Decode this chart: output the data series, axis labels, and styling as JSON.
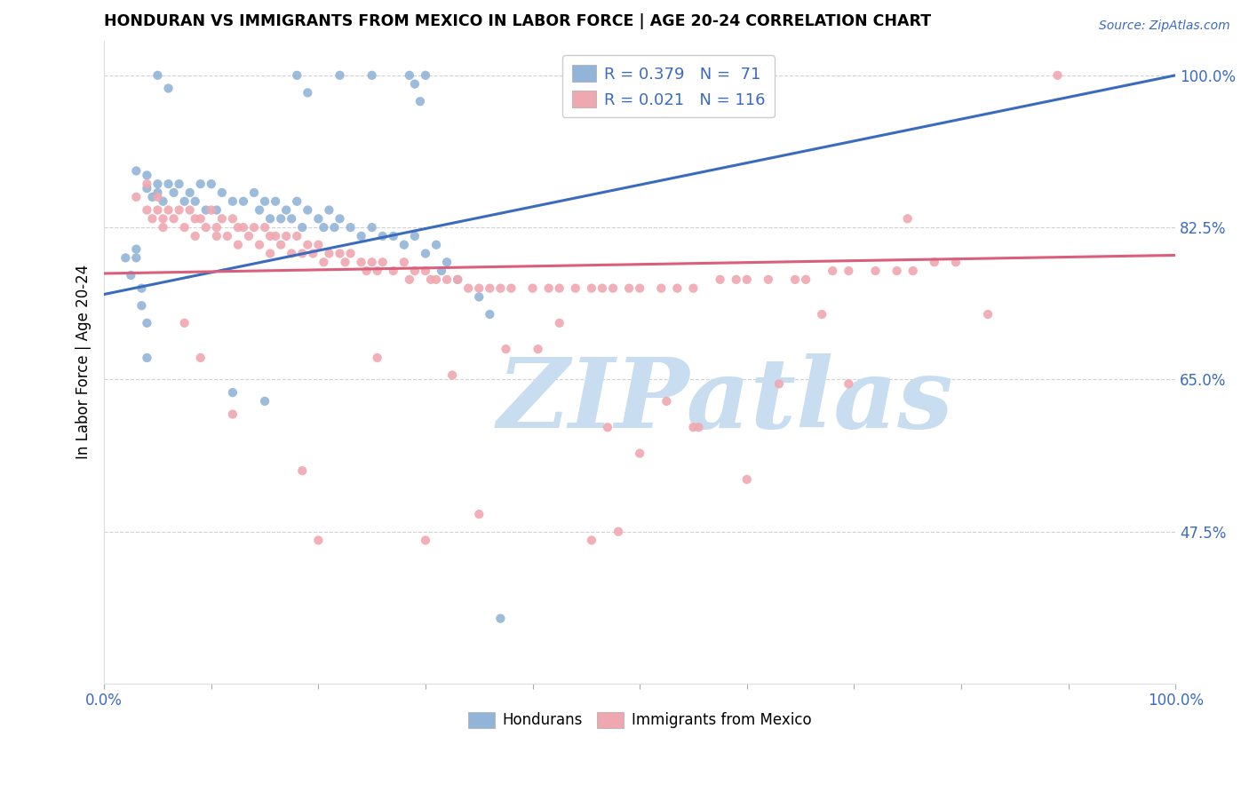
{
  "title": "HONDURAN VS IMMIGRANTS FROM MEXICO IN LABOR FORCE | AGE 20-24 CORRELATION CHART",
  "source": "Source: ZipAtlas.com",
  "ylabel": "In Labor Force | Age 20-24",
  "y_ticks_pct": [
    47.5,
    65.0,
    82.5,
    100.0
  ],
  "x_range": [
    0.0,
    1.0
  ],
  "y_range": [
    0.3,
    1.04
  ],
  "legend_blue_label": "R = 0.379   N =  71",
  "legend_pink_label": "R = 0.021   N = 116",
  "blue_color": "#92b4d8",
  "pink_color": "#f0a8b0",
  "blue_line_color": "#3a6bbf",
  "pink_line_color": "#d95f7a",
  "watermark_color": "#c8ddf0",
  "blue_scatter_x": [
    0.05,
    0.06,
    0.18,
    0.19,
    0.22,
    0.25,
    0.285,
    0.29,
    0.295,
    0.3,
    0.03,
    0.04,
    0.04,
    0.045,
    0.05,
    0.05,
    0.055,
    0.06,
    0.065,
    0.07,
    0.075,
    0.08,
    0.085,
    0.09,
    0.095,
    0.1,
    0.105,
    0.11,
    0.12,
    0.13,
    0.14,
    0.145,
    0.15,
    0.155,
    0.16,
    0.165,
    0.17,
    0.175,
    0.18,
    0.185,
    0.19,
    0.2,
    0.205,
    0.21,
    0.215,
    0.22,
    0.23,
    0.24,
    0.25,
    0.26,
    0.27,
    0.28,
    0.29,
    0.3,
    0.31,
    0.315,
    0.32,
    0.33,
    0.35,
    0.36,
    0.02,
    0.025,
    0.03,
    0.03,
    0.035,
    0.035,
    0.04,
    0.04,
    0.12,
    0.15,
    0.37
  ],
  "blue_scatter_y": [
    1.0,
    0.985,
    1.0,
    0.98,
    1.0,
    1.0,
    1.0,
    0.99,
    0.97,
    1.0,
    0.89,
    0.885,
    0.87,
    0.86,
    0.875,
    0.865,
    0.855,
    0.875,
    0.865,
    0.875,
    0.855,
    0.865,
    0.855,
    0.875,
    0.845,
    0.875,
    0.845,
    0.865,
    0.855,
    0.855,
    0.865,
    0.845,
    0.855,
    0.835,
    0.855,
    0.835,
    0.845,
    0.835,
    0.855,
    0.825,
    0.845,
    0.835,
    0.825,
    0.845,
    0.825,
    0.835,
    0.825,
    0.815,
    0.825,
    0.815,
    0.815,
    0.805,
    0.815,
    0.795,
    0.805,
    0.775,
    0.785,
    0.765,
    0.745,
    0.725,
    0.79,
    0.77,
    0.8,
    0.79,
    0.755,
    0.735,
    0.715,
    0.675,
    0.635,
    0.625,
    0.375
  ],
  "pink_scatter_x": [
    0.03,
    0.04,
    0.04,
    0.045,
    0.05,
    0.05,
    0.055,
    0.055,
    0.06,
    0.065,
    0.07,
    0.075,
    0.08,
    0.085,
    0.085,
    0.09,
    0.095,
    0.1,
    0.105,
    0.105,
    0.11,
    0.115,
    0.12,
    0.125,
    0.125,
    0.13,
    0.135,
    0.14,
    0.145,
    0.15,
    0.155,
    0.155,
    0.16,
    0.165,
    0.17,
    0.175,
    0.18,
    0.185,
    0.19,
    0.195,
    0.2,
    0.205,
    0.21,
    0.22,
    0.225,
    0.23,
    0.24,
    0.245,
    0.25,
    0.255,
    0.26,
    0.27,
    0.28,
    0.285,
    0.29,
    0.3,
    0.305,
    0.31,
    0.32,
    0.33,
    0.34,
    0.35,
    0.36,
    0.37,
    0.38,
    0.4,
    0.415,
    0.425,
    0.44,
    0.455,
    0.465,
    0.475,
    0.49,
    0.5,
    0.52,
    0.535,
    0.55,
    0.575,
    0.59,
    0.6,
    0.62,
    0.645,
    0.655,
    0.68,
    0.695,
    0.72,
    0.74,
    0.755,
    0.775,
    0.795,
    0.63,
    0.5,
    0.35,
    0.48,
    0.2,
    0.695,
    0.825,
    0.3,
    0.455,
    0.6,
    0.12,
    0.075,
    0.09,
    0.75,
    0.89,
    0.405,
    0.55,
    0.425,
    0.375,
    0.67,
    0.255,
    0.325,
    0.525,
    0.47,
    0.185,
    0.555
  ],
  "pink_scatter_y": [
    0.86,
    0.875,
    0.845,
    0.835,
    0.86,
    0.845,
    0.835,
    0.825,
    0.845,
    0.835,
    0.845,
    0.825,
    0.845,
    0.835,
    0.815,
    0.835,
    0.825,
    0.845,
    0.825,
    0.815,
    0.835,
    0.815,
    0.835,
    0.825,
    0.805,
    0.825,
    0.815,
    0.825,
    0.805,
    0.825,
    0.815,
    0.795,
    0.815,
    0.805,
    0.815,
    0.795,
    0.815,
    0.795,
    0.805,
    0.795,
    0.805,
    0.785,
    0.795,
    0.795,
    0.785,
    0.795,
    0.785,
    0.775,
    0.785,
    0.775,
    0.785,
    0.775,
    0.785,
    0.765,
    0.775,
    0.775,
    0.765,
    0.765,
    0.765,
    0.765,
    0.755,
    0.755,
    0.755,
    0.755,
    0.755,
    0.755,
    0.755,
    0.755,
    0.755,
    0.755,
    0.755,
    0.755,
    0.755,
    0.755,
    0.755,
    0.755,
    0.755,
    0.765,
    0.765,
    0.765,
    0.765,
    0.765,
    0.765,
    0.775,
    0.775,
    0.775,
    0.775,
    0.775,
    0.785,
    0.785,
    0.645,
    0.565,
    0.495,
    0.475,
    0.465,
    0.645,
    0.725,
    0.465,
    0.465,
    0.535,
    0.61,
    0.715,
    0.675,
    0.835,
    1.0,
    0.685,
    0.595,
    0.715,
    0.685,
    0.725,
    0.675,
    0.655,
    0.625,
    0.595,
    0.545,
    0.595
  ],
  "blue_line_x": [
    0.0,
    1.0
  ],
  "blue_line_y": [
    0.748,
    1.0
  ],
  "pink_line_x": [
    0.0,
    1.0
  ],
  "pink_line_y": [
    0.772,
    0.793
  ],
  "x_tick_positions": [
    0.0,
    0.1,
    0.2,
    0.3,
    0.4,
    0.5,
    0.6,
    0.7,
    0.8,
    0.9,
    1.0
  ],
  "x_tick_labels": [
    "0.0%",
    "",
    "",
    "",
    "",
    "",
    "",
    "",
    "",
    "",
    "100.0%"
  ]
}
